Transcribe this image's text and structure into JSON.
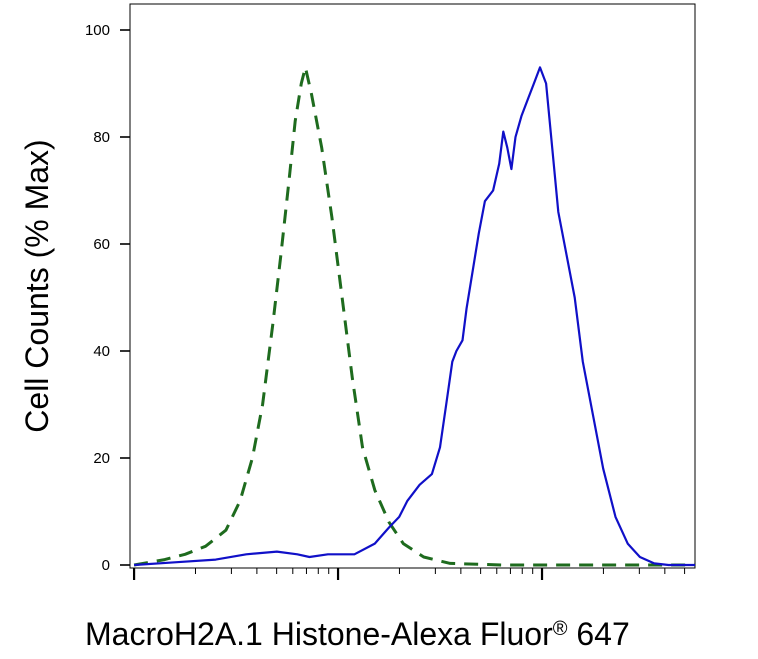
{
  "chart_data": {
    "type": "line",
    "title": "",
    "xlabel_main": "MacroH2A.1 Histone-Alexa Fluor",
    "xlabel_reg": "®",
    "xlabel_tail": " 647",
    "ylabel": "Cell Counts (% Max)",
    "x_scale": "log",
    "x_range": [
      -0.02,
      2.75
    ],
    "y_range": [
      0,
      100
    ],
    "yticks": [
      "0",
      "20",
      "40",
      "60",
      "80",
      "100"
    ],
    "ytick_values": [
      0,
      20,
      40,
      60,
      80,
      100
    ],
    "grid": false,
    "legend": "none",
    "series": [
      {
        "style": "dashed",
        "color": "#1e6b1e",
        "points": [
          [
            0.0,
            0.0
          ],
          [
            0.15,
            1.0
          ],
          [
            0.25,
            2.0
          ],
          [
            0.35,
            3.5
          ],
          [
            0.45,
            6.5
          ],
          [
            0.52,
            12.0
          ],
          [
            0.58,
            20.0
          ],
          [
            0.63,
            30.0
          ],
          [
            0.68,
            45.0
          ],
          [
            0.72,
            58.0
          ],
          [
            0.76,
            72.0
          ],
          [
            0.79,
            83.0
          ],
          [
            0.82,
            90.0
          ],
          [
            0.84,
            93.0
          ],
          [
            0.87,
            88.0
          ],
          [
            0.92,
            78.0
          ],
          [
            0.97,
            65.0
          ],
          [
            1.02,
            50.0
          ],
          [
            1.07,
            35.0
          ],
          [
            1.12,
            22.0
          ],
          [
            1.18,
            14.0
          ],
          [
            1.25,
            8.0
          ],
          [
            1.32,
            4.0
          ],
          [
            1.42,
            1.5
          ],
          [
            1.55,
            0.3
          ],
          [
            1.8,
            0.0
          ],
          [
            2.2,
            0.0
          ],
          [
            2.75,
            0.0
          ]
        ]
      },
      {
        "style": "solid",
        "color": "#1010c8",
        "points": [
          [
            0.0,
            0.0
          ],
          [
            0.2,
            0.5
          ],
          [
            0.4,
            1.0
          ],
          [
            0.55,
            2.0
          ],
          [
            0.7,
            2.5
          ],
          [
            0.8,
            2.0
          ],
          [
            0.86,
            1.5
          ],
          [
            0.95,
            2.0
          ],
          [
            1.08,
            2.0
          ],
          [
            1.18,
            4.0
          ],
          [
            1.25,
            7.0
          ],
          [
            1.3,
            9.0
          ],
          [
            1.34,
            12.0
          ],
          [
            1.4,
            15.0
          ],
          [
            1.46,
            17.0
          ],
          [
            1.5,
            22.0
          ],
          [
            1.53,
            30.0
          ],
          [
            1.56,
            38.0
          ],
          [
            1.58,
            40.0
          ],
          [
            1.61,
            42.0
          ],
          [
            1.63,
            48.0
          ],
          [
            1.66,
            55.0
          ],
          [
            1.69,
            62.0
          ],
          [
            1.72,
            68.0
          ],
          [
            1.76,
            70.0
          ],
          [
            1.79,
            75.0
          ],
          [
            1.81,
            81.0
          ],
          [
            1.83,
            78.0
          ],
          [
            1.85,
            74.0
          ],
          [
            1.87,
            80.0
          ],
          [
            1.9,
            84.0
          ],
          [
            1.93,
            87.0
          ],
          [
            1.96,
            90.0
          ],
          [
            1.99,
            93.0
          ],
          [
            2.02,
            90.0
          ],
          [
            2.05,
            78.0
          ],
          [
            2.08,
            66.0
          ],
          [
            2.12,
            58.0
          ],
          [
            2.16,
            50.0
          ],
          [
            2.2,
            38.0
          ],
          [
            2.25,
            28.0
          ],
          [
            2.3,
            18.0
          ],
          [
            2.36,
            9.0
          ],
          [
            2.42,
            4.0
          ],
          [
            2.48,
            1.5
          ],
          [
            2.55,
            0.3
          ],
          [
            2.62,
            0.0
          ],
          [
            2.75,
            0.0
          ]
        ]
      }
    ]
  }
}
